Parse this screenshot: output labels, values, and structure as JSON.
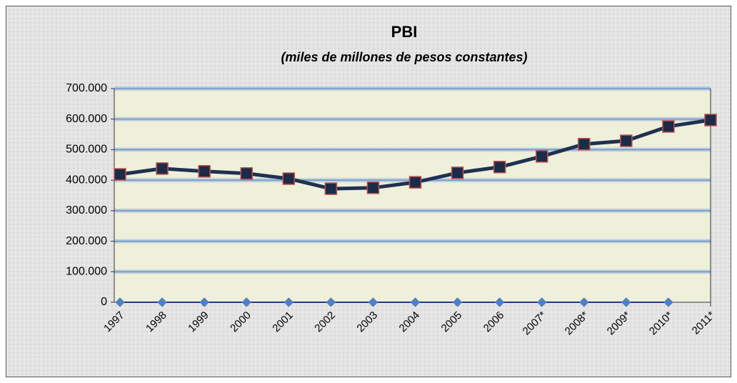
{
  "chart_data": {
    "type": "line",
    "title": "PBI",
    "subtitle": "(miles de millones de pesos constantes)",
    "categories": [
      "1997",
      "1998",
      "1999",
      "2000",
      "2001",
      "2002",
      "2003",
      "2004",
      "2005",
      "2006",
      "2007*",
      "2008*",
      "2009*",
      "2010*",
      "2011*"
    ],
    "series": [
      {
        "color": "#1f3050",
        "marker": "square",
        "marker_color": "#1c2b47",
        "marker_edge_color": "#c0504d",
        "values": [
          419000,
          438000,
          429000,
          422000,
          405000,
          372000,
          375000,
          393000,
          424000,
          443000,
          478000,
          518000,
          529000,
          576000,
          597000
        ]
      },
      {
        "color": "#1f3a8a",
        "marker": "diamond",
        "marker_color": "#4f81bd",
        "marker_edge_color": "#4f81bd",
        "values": [
          0,
          0,
          0,
          0,
          0,
          0,
          0,
          0,
          0,
          0,
          0,
          0,
          0,
          0,
          null
        ]
      }
    ],
    "ylim": [
      0,
      700000
    ],
    "yticks": [
      0,
      {
        "value": 100000,
        "label": "100.000"
      },
      {
        "value": 200000,
        "label": "200.000"
      },
      {
        "value": 300000,
        "label": "300.000"
      },
      {
        "value": 400000,
        "label": "400.000"
      },
      {
        "value": 500000,
        "label": "500.000"
      },
      {
        "value": 600000,
        "label": "600.000"
      },
      {
        "value": 700000,
        "label": "700.000"
      }
    ],
    "grid": true
  }
}
